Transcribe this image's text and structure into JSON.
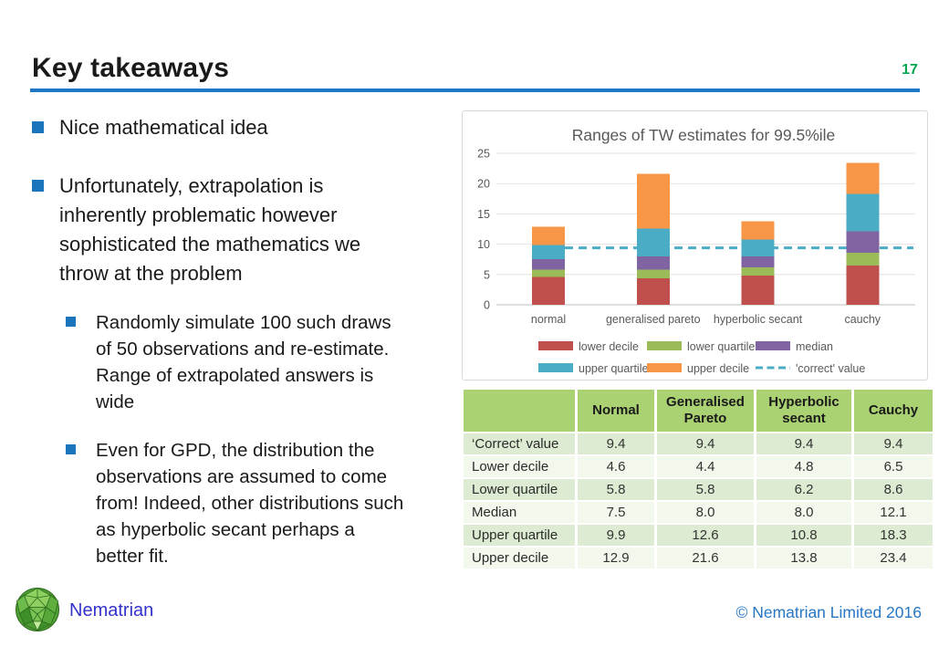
{
  "header": {
    "title": "Key takeaways",
    "slide_number": "17"
  },
  "bullets": [
    {
      "level": 1,
      "lines": [
        "Nice mathematical idea"
      ]
    },
    {
      "level": 1,
      "lines": [
        "Unfortunately, extrapolation is",
        "inherently problematic however",
        "sophisticated the mathematics we",
        "throw at the problem"
      ]
    },
    {
      "level": 2,
      "lines": [
        "Randomly simulate 100 such draws",
        "of 50 observations and re-estimate.",
        "Range of extrapolated answers is",
        "wide"
      ]
    },
    {
      "level": 2,
      "lines": [
        "Even for GPD, the distribution the",
        "observations are assumed to come",
        "from! Indeed, other distributions such",
        "as hyperbolic secant perhaps a",
        "better fit."
      ]
    }
  ],
  "chart_data": {
    "type": "bar",
    "subtype": "stacked-range",
    "title": "Ranges of TW estimates for 99.5%ile",
    "categories": [
      "normal",
      "generalised pareto",
      "hyperbolic secant",
      "cauchy"
    ],
    "series": [
      {
        "name": "lower decile",
        "color": "#C0504D",
        "values": [
          4.6,
          4.4,
          4.8,
          6.5
        ]
      },
      {
        "name": "lower quartile",
        "color": "#9BBB59",
        "values": [
          5.8,
          5.8,
          6.2,
          8.6
        ]
      },
      {
        "name": "median",
        "color": "#8064A2",
        "values": [
          7.5,
          8.0,
          8.0,
          12.1
        ]
      },
      {
        "name": "upper quartile",
        "color": "#4BACC6",
        "values": [
          9.9,
          12.6,
          10.8,
          18.3
        ]
      },
      {
        "name": "upper decile",
        "color": "#F79646",
        "values": [
          12.9,
          21.6,
          13.8,
          23.4
        ]
      }
    ],
    "stacking_note": "values are cumulative tops; each segment spans from previous series value to its own value",
    "correct_value": {
      "name": "'correct' value",
      "value": 9.4,
      "color": "#4BACC6",
      "style": "dashed"
    },
    "ylim": [
      0,
      25
    ],
    "yticks": [
      0,
      5,
      10,
      15,
      20,
      25
    ],
    "grid": true,
    "legend_position": "bottom",
    "text_color": "#595959",
    "gridline_color": "#E2E2E2",
    "axis_line_color": "#BFBFBF"
  },
  "table": {
    "col_headers": [
      "",
      "Normal",
      "Generalised Pareto",
      "Hyperbolic secant",
      "Cauchy"
    ],
    "rows": [
      {
        "label": "‘Correct’ value",
        "values": [
          "9.4",
          "9.4",
          "9.4",
          "9.4"
        ]
      },
      {
        "label": "Lower decile",
        "values": [
          "4.6",
          "4.4",
          "4.8",
          "6.5"
        ]
      },
      {
        "label": "Lower quartile",
        "values": [
          "5.8",
          "5.8",
          "6.2",
          "8.6"
        ]
      },
      {
        "label": "Median",
        "values": [
          "7.5",
          "8.0",
          "8.0",
          "12.1"
        ]
      },
      {
        "label": "Upper quartile",
        "values": [
          "9.9",
          "12.6",
          "10.8",
          "18.3"
        ]
      },
      {
        "label": "Upper decile",
        "values": [
          "12.9",
          "21.6",
          "13.8",
          "23.4"
        ]
      }
    ]
  },
  "footer": {
    "brand": "Nematrian",
    "copyright": "© Nematrian Limited 2016"
  },
  "colors": {
    "title_rule": "#1E78C6",
    "bullet_square": "#1B75BC",
    "slide_number": "#00A651",
    "table_header_bg": "#AAD172",
    "table_row_odd": "#DCEBD2",
    "table_row_even": "#F2F8EC",
    "brand_text": "#3333CC",
    "copyright_text": "#2676C4"
  }
}
